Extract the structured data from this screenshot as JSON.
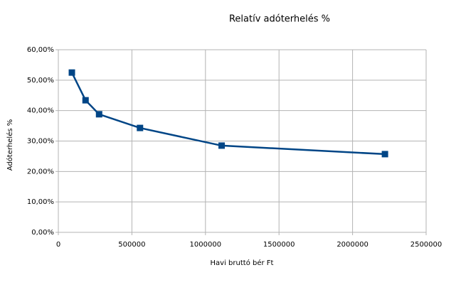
{
  "chart_data": {
    "type": "line",
    "title": "Relatív adóterhelés %",
    "x_label": "Havi bruttó bér Ft",
    "y_label": "Adóterhelés %",
    "x": [
      92000,
      185000,
      277000,
      555000,
      1110000,
      2220000
    ],
    "series": [
      {
        "name": "Adóterhelés %",
        "color": "#004586",
        "values": [
          52.5,
          43.4,
          38.8,
          34.3,
          28.5,
          25.7
        ]
      }
    ],
    "xlim": [
      0,
      2500000
    ],
    "xticks": [
      0,
      500000,
      1000000,
      1500000,
      2000000,
      2500000
    ],
    "ylim": [
      0,
      60
    ],
    "yticks": [
      {
        "value": 0,
        "label": "0,00%"
      },
      {
        "value": 10,
        "label": "10,00%"
      },
      {
        "value": 20,
        "label": "20,00%"
      },
      {
        "value": 30,
        "label": "30,00%"
      },
      {
        "value": 40,
        "label": "40,00%"
      },
      {
        "value": 50,
        "label": "50,00%"
      },
      {
        "value": 60,
        "label": "60,00%"
      }
    ],
    "grid": true
  }
}
